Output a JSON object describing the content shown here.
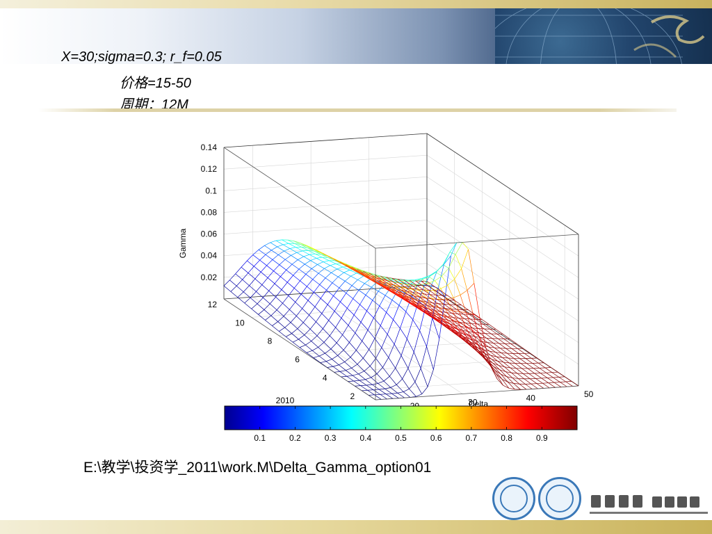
{
  "slide": {
    "title_line1": "X=30;sigma=0.3; r_f=0.05",
    "title_line2": "价格=15-50",
    "title_line3": "周期：12M",
    "footer_path": "E:\\教学\\投资学_2011\\work.M\\Delta_Gamma_option01"
  },
  "chart_data": {
    "type": "surface3d",
    "zlabel": "Gamma",
    "xlabel": "Delta",
    "colorbar_label": "2010",
    "price_axis": {
      "ticks": [
        20,
        30,
        40,
        50
      ],
      "range": [
        15,
        50
      ]
    },
    "period_axis": {
      "ticks": [
        2,
        4,
        6,
        8,
        10,
        12
      ],
      "range": [
        1,
        12
      ]
    },
    "z_axis": {
      "ticks": [
        0.02,
        0.04,
        0.06,
        0.08,
        0.1,
        0.12,
        0.14
      ],
      "tick_labels": [
        "0.02",
        "0.04",
        "0.06",
        "0.08",
        "0.1",
        "0.12",
        "0.14"
      ],
      "range": [
        0,
        0.14
      ]
    },
    "colorbar": {
      "ticks": [
        0.1,
        0.2,
        0.3,
        0.4,
        0.5,
        0.6,
        0.7,
        0.8,
        0.9
      ],
      "range": [
        0,
        1
      ],
      "colormap": "jet"
    },
    "model": {
      "strike": 30,
      "sigma": 0.3,
      "r_f": 0.05
    },
    "grid": true
  }
}
